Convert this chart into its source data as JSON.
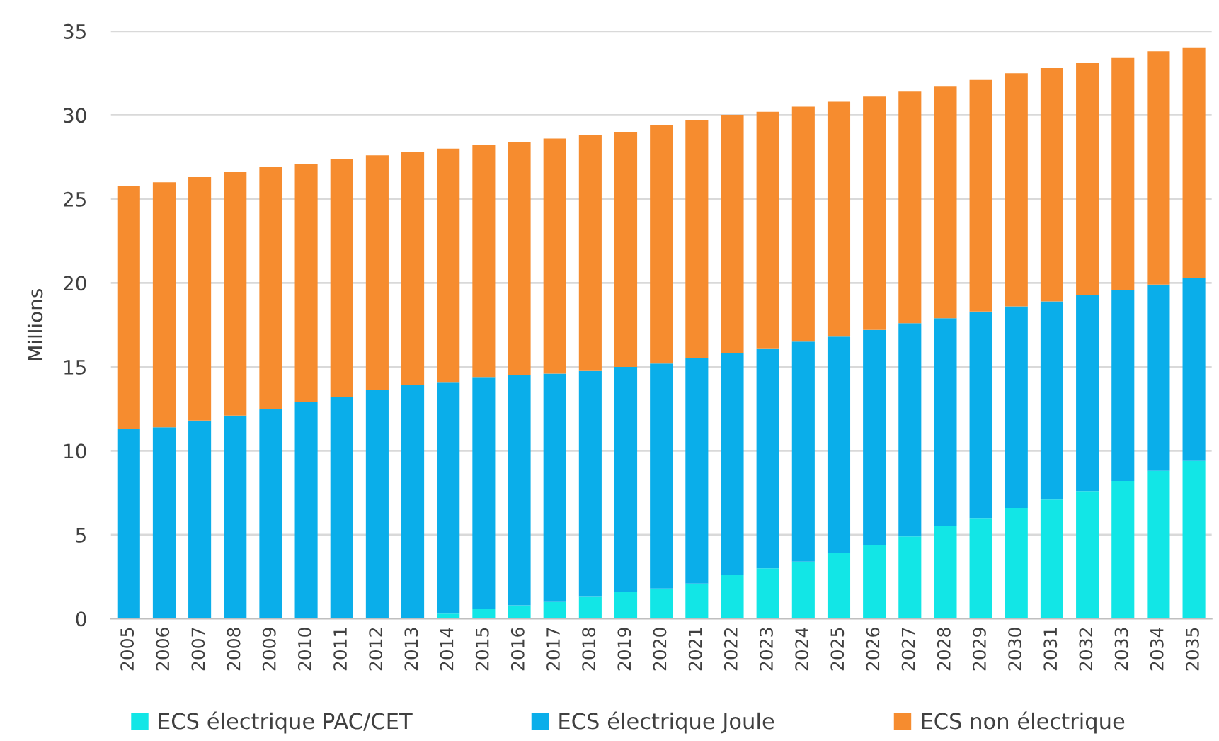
{
  "chart_data": {
    "type": "bar",
    "stacked": true,
    "ylabel": "Millions",
    "categories": [
      "2005",
      "2006",
      "2007",
      "2008",
      "2009",
      "2010",
      "2011",
      "2012",
      "2013",
      "2014",
      "2015",
      "2016",
      "2017",
      "2018",
      "2019",
      "2020",
      "2021",
      "2022",
      "2023",
      "2024",
      "2025",
      "2026",
      "2027",
      "2028",
      "2029",
      "2030",
      "2031",
      "2032",
      "2033",
      "2034",
      "2035"
    ],
    "series": [
      {
        "name": "ECS électrique PAC/CET",
        "color": "#12e6e6",
        "values": [
          null,
          null,
          null,
          null,
          null,
          null,
          null,
          null,
          null,
          0.3,
          0.6,
          0.8,
          1.0,
          1.3,
          1.6,
          1.8,
          2.1,
          2.6,
          3.0,
          3.4,
          3.9,
          4.4,
          4.9,
          5.5,
          6.0,
          6.6,
          7.1,
          7.6,
          8.2,
          8.8,
          9.4
        ]
      },
      {
        "name": "ECS électrique Joule",
        "color": "#0aaeea",
        "values": [
          11.3,
          11.4,
          11.8,
          12.1,
          12.5,
          12.9,
          13.2,
          13.6,
          13.9,
          13.8,
          13.8,
          13.7,
          13.6,
          13.5,
          13.4,
          13.4,
          13.4,
          13.2,
          13.1,
          13.1,
          12.9,
          12.8,
          12.7,
          12.4,
          12.3,
          12.0,
          11.8,
          11.7,
          11.4,
          11.1,
          10.9
        ]
      },
      {
        "name": "ECS non électrique",
        "color": "#f68c2f",
        "values": [
          14.5,
          14.6,
          14.5,
          14.5,
          14.4,
          14.2,
          14.2,
          14.0,
          13.9,
          13.9,
          13.8,
          13.9,
          14.0,
          14.0,
          14.0,
          14.2,
          14.2,
          14.2,
          14.1,
          14.0,
          14.0,
          13.9,
          13.8,
          13.8,
          13.8,
          13.9,
          13.9,
          13.8,
          13.8,
          13.9,
          13.7
        ]
      }
    ],
    "ylim": [
      0,
      35
    ],
    "yticks": [
      0,
      5,
      10,
      15,
      20,
      25,
      30,
      35
    ],
    "grid": "y",
    "legend": "bottom"
  }
}
